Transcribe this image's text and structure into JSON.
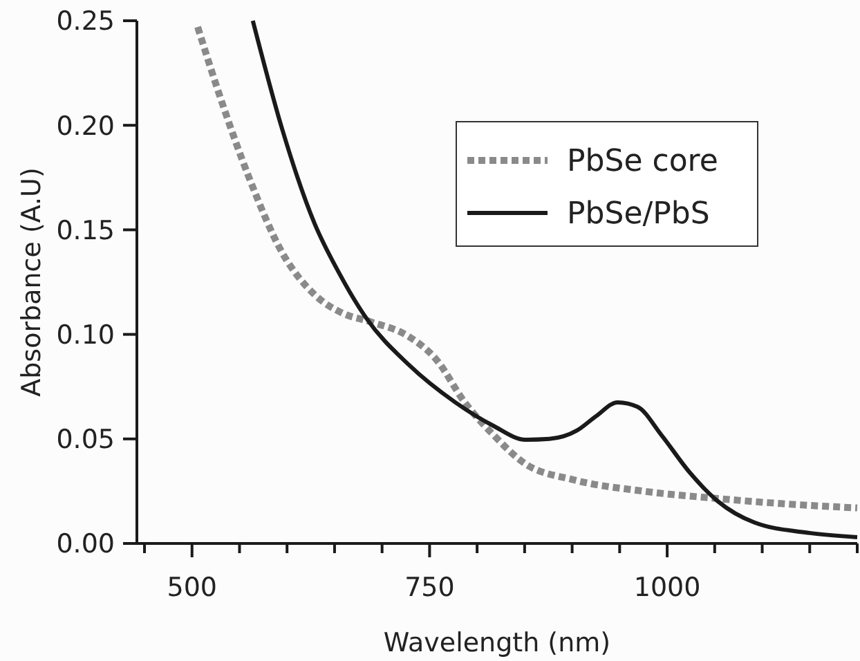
{
  "chart_data": {
    "type": "line",
    "xlabel": "Wavelength (nm)",
    "ylabel": "Absorbance (A.U)",
    "xlim": [
      442,
      1200
    ],
    "ylim": [
      0,
      0.25
    ],
    "xticks": [
      {
        "value": 450,
        "label": null
      },
      {
        "value": 500,
        "label": "500"
      },
      {
        "value": 550,
        "label": null
      },
      {
        "value": 600,
        "label": null
      },
      {
        "value": 650,
        "label": null
      },
      {
        "value": 700,
        "label": null
      },
      {
        "value": 750,
        "label": "750"
      },
      {
        "value": 800,
        "label": null
      },
      {
        "value": 850,
        "label": null
      },
      {
        "value": 900,
        "label": null
      },
      {
        "value": 950,
        "label": null
      },
      {
        "value": 1000,
        "label": "1000"
      },
      {
        "value": 1050,
        "label": null
      },
      {
        "value": 1100,
        "label": null
      },
      {
        "value": 1150,
        "label": null
      },
      {
        "value": 1200,
        "label": null
      }
    ],
    "yticks": [
      {
        "value": 0,
        "label": "0.00"
      },
      {
        "value": 0.05,
        "label": "0.05"
      },
      {
        "value": 0.1,
        "label": "0.10"
      },
      {
        "value": 0.15,
        "label": "0.15"
      },
      {
        "value": 0.2,
        "label": "0.20"
      },
      {
        "value": 0.25,
        "label": "0.25"
      }
    ],
    "grid": false,
    "legend": "top right",
    "marker": "none",
    "series": [
      {
        "name": "PbSe core",
        "color": "#8a8a8a",
        "line_style": "dotted",
        "x": [
          506,
          530,
          560,
          595,
          629,
          659,
          688,
          728,
          757,
          787,
          817,
          851,
          901,
          975,
          1053,
          1122,
          1200
        ],
        "values": [
          0.247,
          0.213,
          0.175,
          0.139,
          0.119,
          0.11,
          0.106,
          0.099,
          0.088,
          0.0675,
          0.052,
          0.038,
          0.0305,
          0.025,
          0.0215,
          0.019,
          0.017
        ]
      },
      {
        "name": "PbSe/PbS",
        "color": "#1a1a1a",
        "line_style": "solid",
        "x": [
          564,
          595,
          629,
          654,
          683,
          728,
          777,
          817,
          851,
          876,
          905,
          925,
          948,
          969,
          994,
          1024,
          1053,
          1092,
          1150,
          1200
        ],
        "values": [
          0.25,
          0.198,
          0.153,
          0.13,
          0.108,
          0.0855,
          0.0675,
          0.0563,
          0.0496,
          0.05,
          0.054,
          0.0608,
          0.0675,
          0.0653,
          0.0518,
          0.0338,
          0.0203,
          0.01,
          0.005,
          0.003
        ]
      }
    ]
  }
}
